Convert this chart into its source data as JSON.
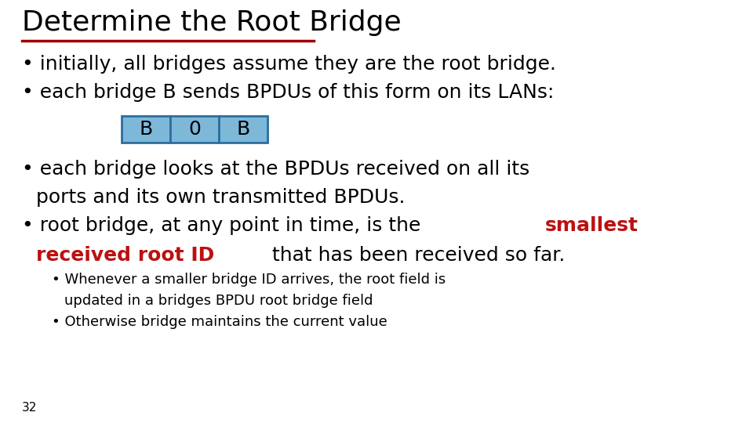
{
  "title": "Determine the Root Bridge",
  "title_fontsize": 26,
  "title_color": "#000000",
  "underline_color": "#a00000",
  "background_color": "#ffffff",
  "bullet1": "initially, all bridges assume they are the root bridge.",
  "bullet2": "each bridge B sends BPDUs of this form on its LANs:",
  "box_labels": [
    "B",
    "0",
    "B"
  ],
  "box_fill_color": "#7eb8d9",
  "box_edge_color": "#2c6e9e",
  "bullet3_part1": "each bridge looks at the BPDUs received on all its",
  "bullet3_part2": "ports and its own transmitted BPDUs.",
  "bullet4_black1": "root bridge, at any point in time, is the ",
  "bullet4_red1": "smallest",
  "bullet4_red2": "received root ID",
  "bullet4_black2": " that has been received so far.",
  "sub_bullet1_line1": "Whenever a smaller bridge ID arrives, the root field is",
  "sub_bullet1_line2": "updated in a bridges BPDU root bridge field",
  "sub_bullet2": "Otherwise bridge maintains the current value",
  "page_number": "32",
  "main_fontsize": 18,
  "sub_fontsize": 13,
  "red_color": "#bb1111",
  "black_color": "#000000",
  "bullet_indent": 25,
  "sub_indent": 60,
  "sub2_indent": 75
}
